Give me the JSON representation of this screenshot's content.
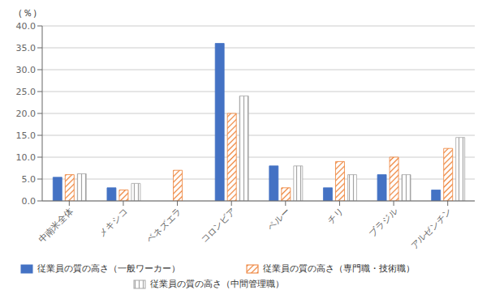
{
  "chart_data": {
    "type": "bar",
    "categories": [
      "中南米全体",
      "メキシコ",
      "ベネズエラ",
      "コロンビア",
      "ペルー",
      "チリ",
      "ブラジル",
      "アルゼンチン"
    ],
    "series": [
      {
        "name": "従業員の質の高さ（一般ワーカー）",
        "color": "#4472C4",
        "values": [
          5.4,
          3.0,
          0.0,
          36.0,
          8.0,
          3.0,
          6.0,
          2.5
        ]
      },
      {
        "name": "従業員の質の高さ（専門職・技術職）",
        "color": "#ED7D31",
        "values": [
          6.0,
          2.5,
          7.0,
          20.0,
          3.0,
          9.0,
          10.0,
          12.0
        ]
      },
      {
        "name": "従業員の質の高さ（中間管理職）",
        "color": "#A5A5A5",
        "values": [
          6.2,
          4.0,
          0.0,
          24.0,
          8.0,
          6.0,
          6.0,
          14.5
        ]
      }
    ],
    "ylabel": "（％）",
    "ylim": [
      0,
      40.0
    ],
    "yticks": [
      {
        "value": 0.0,
        "label": "0.0"
      },
      {
        "value": 5.0,
        "label": "5.0"
      },
      {
        "value": 10.0,
        "label": "10.0"
      },
      {
        "value": 15.0,
        "label": "15.0"
      },
      {
        "value": 20.0,
        "label": "20.0"
      },
      {
        "value": 25.0,
        "label": "25.0"
      },
      {
        "value": 30.0,
        "label": "30.0"
      },
      {
        "value": 35.0,
        "label": "35.0"
      },
      {
        "value": 40.0,
        "label": "40.0"
      }
    ],
    "grid": true,
    "legend": "bottom"
  }
}
